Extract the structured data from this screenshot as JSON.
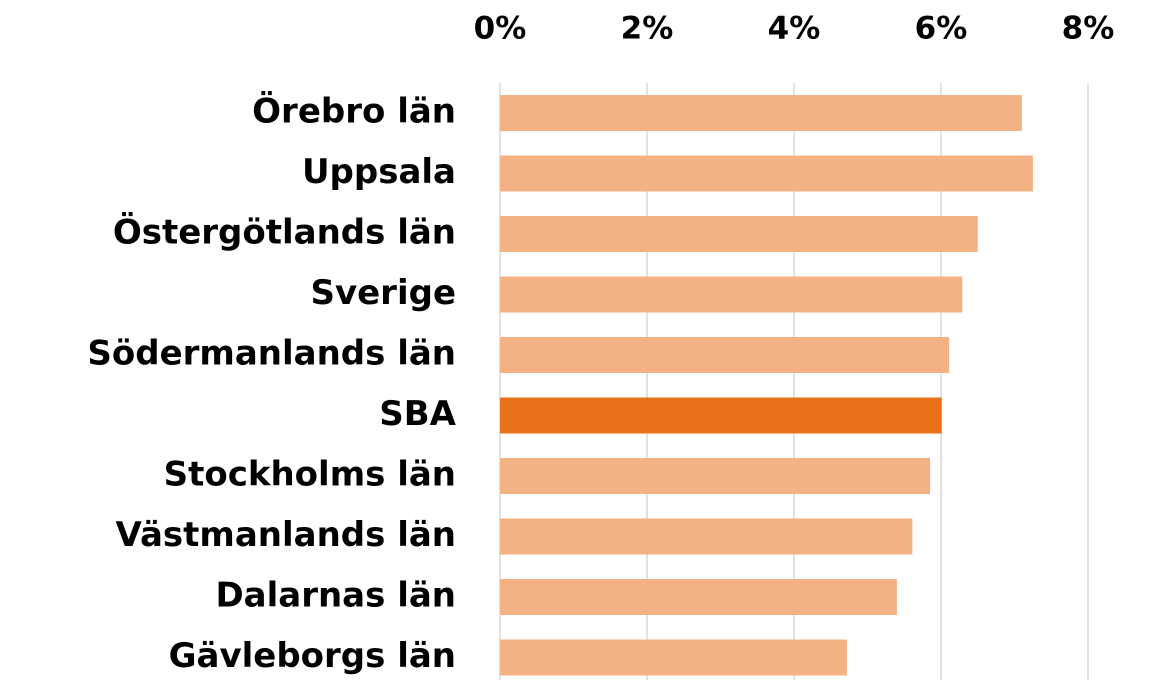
{
  "chart_data": {
    "type": "bar",
    "orientation": "horizontal",
    "categories": [
      "Örebro län",
      "Uppsala",
      "Östergötlands län",
      "Sverige",
      "Södermanlands län",
      "SBA",
      "Stockholms län",
      "Västmanlands län",
      "Dalarnas län",
      "Gävleborgs län"
    ],
    "values": [
      7.1,
      7.25,
      6.5,
      6.29,
      6.11,
      6.01,
      5.85,
      5.61,
      5.4,
      4.72
    ],
    "colors": [
      "#f4b183",
      "#f4b183",
      "#f4b183",
      "#f4b183",
      "#f4b183",
      "#e9711c",
      "#f4b183",
      "#f4b183",
      "#f4b183",
      "#f4b183"
    ],
    "xlim": [
      0,
      8
    ],
    "xticks": [
      {
        "value": 0,
        "label": "0%"
      },
      {
        "value": 2,
        "label": "2%"
      },
      {
        "value": 4,
        "label": "4%"
      },
      {
        "value": 6,
        "label": "6%"
      },
      {
        "value": 8,
        "label": "8%"
      }
    ],
    "grid": true
  }
}
